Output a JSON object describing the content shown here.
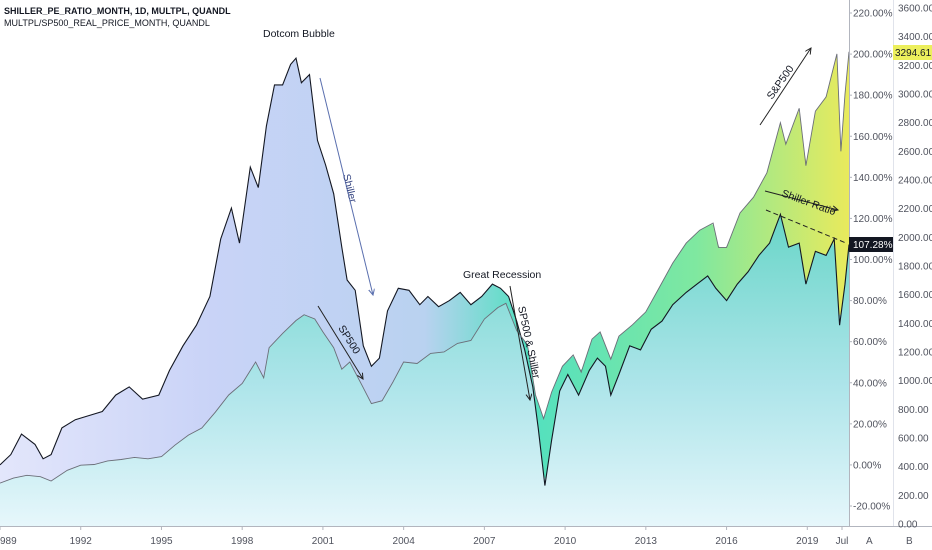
{
  "legend": {
    "line1": "SHILLER_PE_RATIO_MONTH, 1D, MULTPL, QUANDL",
    "line2": "MULTPL/SP500_REAL_PRICE_MONTH, QUANDL"
  },
  "buttons": {
    "auto": "A",
    "log": "B"
  },
  "chart_data": {
    "type": "area",
    "x_ticks": [
      "989",
      "1992",
      "1995",
      "1998",
      "2001",
      "2004",
      "2007",
      "2010",
      "2013",
      "2016",
      "2019",
      "Jul"
    ],
    "left_axis": {
      "ticks": [
        "220.00%",
        "200.00%",
        "180.00%",
        "160.00%",
        "140.00%",
        "120.00%",
        "100.00%",
        "80.00%",
        "60.00%",
        "40.00%",
        "20.00%",
        "0.00%",
        "-20.00%"
      ],
      "range": [
        -27,
        226
      ]
    },
    "right_axis": {
      "ticks": [
        "3600.00",
        "3400.00",
        "3200.00",
        "3000.00",
        "2800.00",
        "2600.00",
        "2400.00",
        "2200.00",
        "2000.00",
        "1800.00",
        "1600.00",
        "1400.00",
        "1200.00",
        "1000.00",
        "800.00",
        "600.00",
        "400.00",
        "200.00",
        "0.00"
      ],
      "range": [
        -20,
        3650
      ]
    },
    "badges": {
      "price_last": "3294.61",
      "shiller_last": "107.28%"
    },
    "x_range": [
      1989.0,
      2020.55
    ],
    "series": [
      {
        "name": "SHILLER_PE_RATIO_MONTH",
        "axis": "left_percent",
        "color": "#131722",
        "points": [
          [
            1989.0,
            0
          ],
          [
            1989.4,
            5
          ],
          [
            1989.8,
            15
          ],
          [
            1990.3,
            10
          ],
          [
            1990.6,
            3
          ],
          [
            1990.9,
            5
          ],
          [
            1991.3,
            18
          ],
          [
            1991.8,
            22
          ],
          [
            1992.3,
            24
          ],
          [
            1992.8,
            26
          ],
          [
            1993.3,
            34
          ],
          [
            1993.8,
            38
          ],
          [
            1994.3,
            32
          ],
          [
            1994.9,
            34
          ],
          [
            1995.3,
            46
          ],
          [
            1995.8,
            58
          ],
          [
            1996.3,
            68
          ],
          [
            1996.8,
            82
          ],
          [
            1997.2,
            110
          ],
          [
            1997.6,
            125
          ],
          [
            1997.9,
            108
          ],
          [
            1998.3,
            145
          ],
          [
            1998.6,
            135
          ],
          [
            1998.9,
            165
          ],
          [
            1999.2,
            185
          ],
          [
            1999.5,
            185
          ],
          [
            1999.8,
            195
          ],
          [
            2000.0,
            198
          ],
          [
            2000.2,
            186
          ],
          [
            2000.5,
            190
          ],
          [
            2000.8,
            158
          ],
          [
            2001.1,
            146
          ],
          [
            2001.4,
            132
          ],
          [
            2001.7,
            106
          ],
          [
            2001.9,
            90
          ],
          [
            2002.2,
            85
          ],
          [
            2002.5,
            58
          ],
          [
            2002.8,
            48
          ],
          [
            2003.1,
            52
          ],
          [
            2003.4,
            75
          ],
          [
            2003.8,
            86
          ],
          [
            2004.2,
            85
          ],
          [
            2004.6,
            78
          ],
          [
            2004.9,
            82
          ],
          [
            2005.3,
            77
          ],
          [
            2005.7,
            80
          ],
          [
            2006.1,
            84
          ],
          [
            2006.5,
            78
          ],
          [
            2006.9,
            82
          ],
          [
            2007.3,
            88
          ],
          [
            2007.6,
            86
          ],
          [
            2007.9,
            82
          ],
          [
            2008.2,
            70
          ],
          [
            2008.5,
            56
          ],
          [
            2008.8,
            38
          ],
          [
            2009.0,
            18
          ],
          [
            2009.25,
            -10
          ],
          [
            2009.5,
            12
          ],
          [
            2009.8,
            36
          ],
          [
            2010.1,
            44
          ],
          [
            2010.5,
            34
          ],
          [
            2010.9,
            46
          ],
          [
            2011.2,
            52
          ],
          [
            2011.5,
            48
          ],
          [
            2011.7,
            34
          ],
          [
            2012.0,
            44
          ],
          [
            2012.4,
            58
          ],
          [
            2012.8,
            56
          ],
          [
            2013.2,
            66
          ],
          [
            2013.6,
            70
          ],
          [
            2014.0,
            78
          ],
          [
            2014.5,
            84
          ],
          [
            2014.9,
            88
          ],
          [
            2015.3,
            92
          ],
          [
            2015.6,
            86
          ],
          [
            2016.0,
            80
          ],
          [
            2016.4,
            88
          ],
          [
            2016.8,
            94
          ],
          [
            2017.2,
            102
          ],
          [
            2017.6,
            108
          ],
          [
            2018.0,
            122
          ],
          [
            2018.3,
            106
          ],
          [
            2018.7,
            108
          ],
          [
            2018.95,
            88
          ],
          [
            2019.3,
            104
          ],
          [
            2019.7,
            102
          ],
          [
            2020.0,
            110
          ],
          [
            2020.2,
            68
          ],
          [
            2020.4,
            88
          ],
          [
            2020.55,
            107.28
          ]
        ]
      },
      {
        "name": "SP500_REAL_PRICE_MONTH",
        "axis": "right_price",
        "color": "#6b6e78",
        "points": [
          [
            1989.0,
            285
          ],
          [
            1989.5,
            320
          ],
          [
            1990.0,
            340
          ],
          [
            1990.5,
            330
          ],
          [
            1990.9,
            300
          ],
          [
            1991.5,
            375
          ],
          [
            1992.0,
            410
          ],
          [
            1992.5,
            415
          ],
          [
            1993.0,
            440
          ],
          [
            1993.5,
            450
          ],
          [
            1994.0,
            465
          ],
          [
            1994.5,
            455
          ],
          [
            1995.0,
            470
          ],
          [
            1995.5,
            550
          ],
          [
            1996.0,
            620
          ],
          [
            1996.5,
            670
          ],
          [
            1997.0,
            780
          ],
          [
            1997.5,
            900
          ],
          [
            1998.0,
            980
          ],
          [
            1998.5,
            1130
          ],
          [
            1998.8,
            1020
          ],
          [
            1999.0,
            1230
          ],
          [
            1999.5,
            1330
          ],
          [
            2000.0,
            1420
          ],
          [
            2000.3,
            1460
          ],
          [
            2000.7,
            1430
          ],
          [
            2001.0,
            1340
          ],
          [
            2001.4,
            1230
          ],
          [
            2001.7,
            1080
          ],
          [
            2002.0,
            1130
          ],
          [
            2002.5,
            950
          ],
          [
            2002.8,
            840
          ],
          [
            2003.2,
            860
          ],
          [
            2003.6,
            990
          ],
          [
            2004.0,
            1130
          ],
          [
            2004.5,
            1120
          ],
          [
            2005.0,
            1190
          ],
          [
            2005.5,
            1200
          ],
          [
            2006.0,
            1260
          ],
          [
            2006.5,
            1280
          ],
          [
            2007.0,
            1430
          ],
          [
            2007.5,
            1510
          ],
          [
            2007.8,
            1540
          ],
          [
            2008.2,
            1350
          ],
          [
            2008.6,
            1250
          ],
          [
            2008.9,
            900
          ],
          [
            2009.2,
            735
          ],
          [
            2009.5,
            920
          ],
          [
            2009.9,
            1100
          ],
          [
            2010.3,
            1180
          ],
          [
            2010.6,
            1060
          ],
          [
            2011.0,
            1290
          ],
          [
            2011.3,
            1340
          ],
          [
            2011.7,
            1150
          ],
          [
            2012.0,
            1310
          ],
          [
            2012.5,
            1390
          ],
          [
            2013.0,
            1480
          ],
          [
            2013.5,
            1650
          ],
          [
            2014.0,
            1820
          ],
          [
            2014.5,
            1960
          ],
          [
            2015.0,
            2050
          ],
          [
            2015.5,
            2100
          ],
          [
            2015.7,
            1930
          ],
          [
            2016.0,
            1930
          ],
          [
            2016.5,
            2170
          ],
          [
            2017.0,
            2280
          ],
          [
            2017.5,
            2450
          ],
          [
            2018.0,
            2800
          ],
          [
            2018.2,
            2650
          ],
          [
            2018.7,
            2900
          ],
          [
            2018.95,
            2500
          ],
          [
            2019.3,
            2880
          ],
          [
            2019.7,
            2980
          ],
          [
            2020.1,
            3280
          ],
          [
            2020.25,
            2600
          ],
          [
            2020.4,
            3000
          ],
          [
            2020.55,
            3294.61
          ]
        ]
      }
    ],
    "annotations": [
      {
        "id": "dotcom",
        "text": "Dotcom Bubble"
      },
      {
        "id": "shiller-fall",
        "text": "Shiller"
      },
      {
        "id": "sp500-fall",
        "text": "SP500"
      },
      {
        "id": "great-recession",
        "text": "Great Recession"
      },
      {
        "id": "sp500-shiller",
        "text": "SP500 & Shiller"
      },
      {
        "id": "sp-up",
        "text": "S&P500"
      },
      {
        "id": "shiller-ratio",
        "text": "Shiller Ratio"
      }
    ]
  }
}
